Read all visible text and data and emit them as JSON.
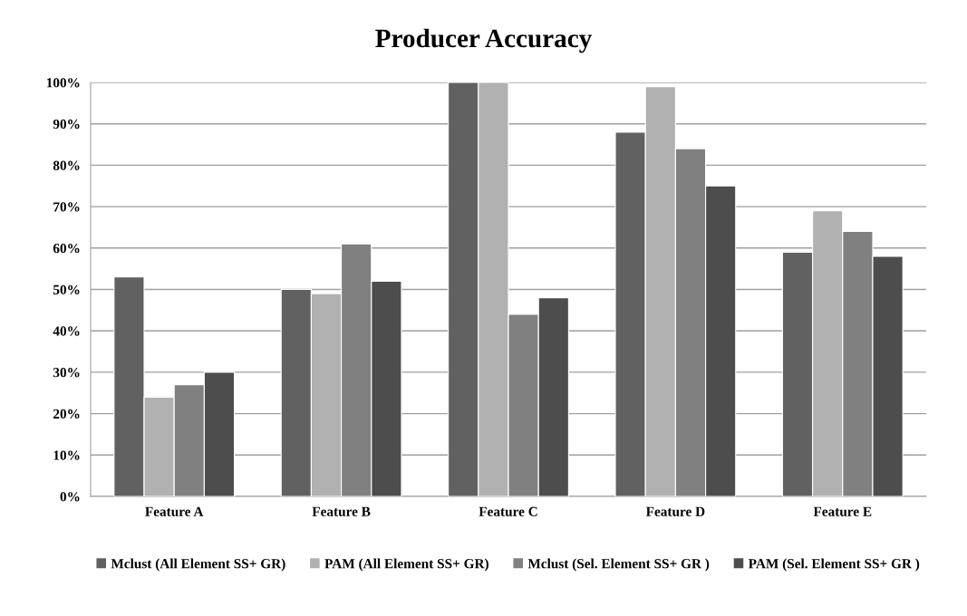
{
  "chart_data": {
    "type": "bar",
    "title": "Producer Accuracy",
    "categories": [
      "Feature A",
      "Feature B",
      "Feature C",
      "Feature D",
      "Feature E"
    ],
    "series": [
      {
        "name": "Mclust (All Element SS+ GR)",
        "color": "#616161",
        "values": [
          53,
          50,
          100,
          88,
          59
        ]
      },
      {
        "name": "PAM (All Element SS+ GR)",
        "color": "#b1b1b1",
        "values": [
          24,
          49,
          100,
          99,
          69
        ]
      },
      {
        "name": "Mclust (Sel. Element SS+ GR )",
        "color": "#808080",
        "values": [
          27,
          61,
          44,
          84,
          64
        ]
      },
      {
        "name": "PAM (Sel. Element SS+ GR )",
        "color": "#4d4d4d",
        "values": [
          30,
          52,
          48,
          75,
          58
        ]
      }
    ],
    "ylim": [
      0,
      100
    ],
    "yticks": [
      {
        "value": 0,
        "label": "0%"
      },
      {
        "value": 10,
        "label": "10%"
      },
      {
        "value": 20,
        "label": "20%"
      },
      {
        "value": 30,
        "label": "30%"
      },
      {
        "value": 40,
        "label": "40%"
      },
      {
        "value": 50,
        "label": "50%"
      },
      {
        "value": 60,
        "label": "60%"
      },
      {
        "value": 70,
        "label": "70%"
      },
      {
        "value": 80,
        "label": "80%"
      },
      {
        "value": 90,
        "label": "90%"
      },
      {
        "value": 100,
        "label": "100%"
      }
    ],
    "grid": "y",
    "legend": "bottom"
  }
}
